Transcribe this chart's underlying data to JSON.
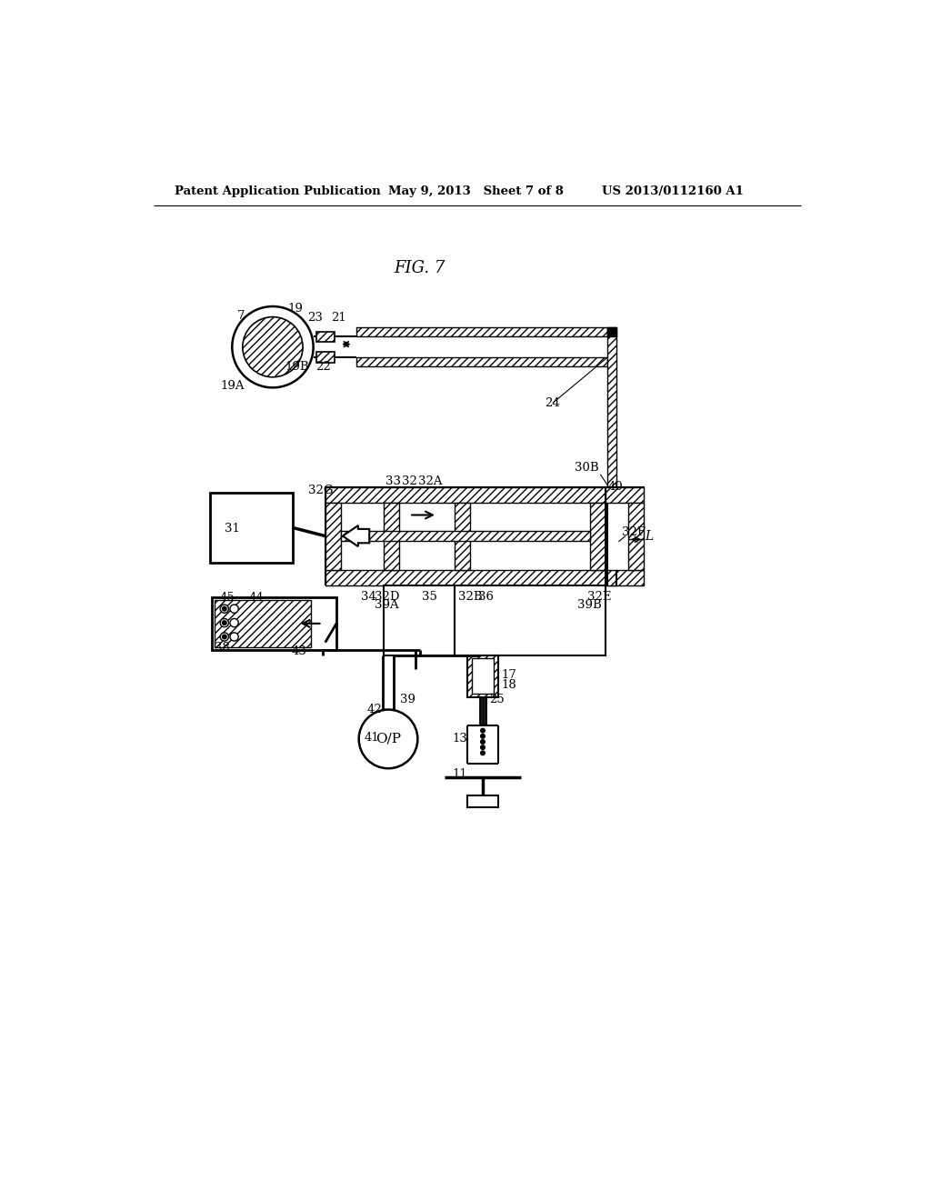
{
  "bg_color": "#ffffff",
  "header_left": "Patent Application Publication",
  "header_mid": "May 9, 2013   Sheet 7 of 8",
  "header_right": "US 2013/0112160 A1",
  "fig_label": "FIG. 7"
}
